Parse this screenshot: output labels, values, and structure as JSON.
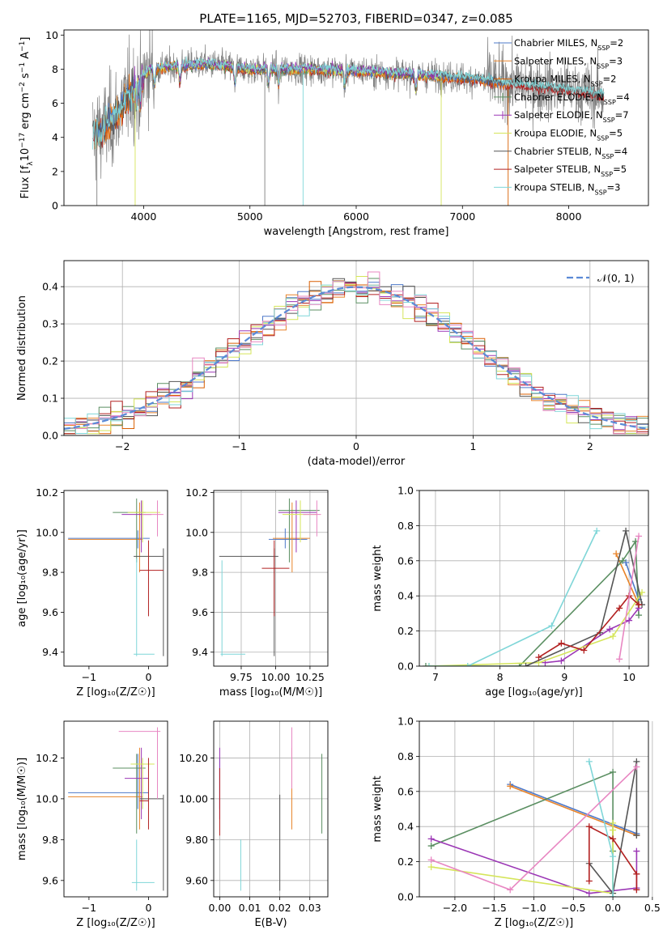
{
  "title": "PLATE=1165, MJD=52703, FIBERID=0347, z=0.085",
  "colors": {
    "Chabrier MILES": "#4e79c9",
    "Salpeter MILES": "#e8842a",
    "Kroupa MILES": "#d95f02",
    "Chabrier ELODIE": "#5b8f62",
    "Salpeter ELODIE": "#9b36b5",
    "Kroupa ELODIE": "#d5e55a",
    "Chabrier STELIB": "#555555",
    "Salpeter STELIB": "#b22020",
    "Kroupa STELIB": "#7fd6d8",
    "gauss": "#5a8ad6",
    "pink": "#e887c2",
    "grid": "#b0b0b0"
  },
  "chart_data": [
    {
      "id": "spectrum",
      "type": "line",
      "title": "PLATE=1165, MJD=52703, FIBERID=0347, z=0.085",
      "xlabel": "wavelength [Angstrom, rest frame]",
      "ylabel_parts": [
        "Flux [f",
        "λ",
        "10",
        "−17",
        " erg cm",
        "−2",
        " s",
        "−1",
        " A",
        "−1",
        "]"
      ],
      "xlim": [
        3250,
        8750
      ],
      "ylim": [
        0,
        10.3
      ],
      "xticks": [
        4000,
        5000,
        6000,
        7000,
        8000
      ],
      "yticks": [
        0,
        2,
        4,
        6,
        8,
        10
      ],
      "legend_position": "right",
      "legend": [
        {
          "base": "Chabrier MILES, N",
          "n": 2,
          "kind": "line",
          "color": "Chabrier MILES"
        },
        {
          "base": "Salpeter MILES, N",
          "n": 3,
          "kind": "line",
          "color": "Salpeter MILES"
        },
        {
          "base": "Kroupa MILES, N",
          "n": 2,
          "kind": "line",
          "color": "Kroupa MILES"
        },
        {
          "base": "Chabrier ELODIE, N",
          "n": 4,
          "kind": "plus",
          "color": "Chabrier ELODIE"
        },
        {
          "base": "Salpeter ELODIE, N",
          "n": 7,
          "kind": "plus",
          "color": "Salpeter ELODIE"
        },
        {
          "base": "Kroupa ELODIE, N",
          "n": 5,
          "kind": "line",
          "color": "Kroupa ELODIE"
        },
        {
          "base": "Chabrier STELIB, N",
          "n": 4,
          "kind": "line",
          "color": "Chabrier STELIB"
        },
        {
          "base": "Salpeter STELIB, N",
          "n": 5,
          "kind": "line",
          "color": "Salpeter STELIB"
        },
        {
          "base": "Kroupa STELIB, N",
          "n": 3,
          "kind": "line",
          "color": "Kroupa STELIB"
        }
      ],
      "legend_sub": "SSP",
      "continuum": [
        [
          3550,
          4.2
        ],
        [
          3650,
          4.6
        ],
        [
          3750,
          5.4
        ],
        [
          3850,
          6.4
        ],
        [
          3950,
          7.1
        ],
        [
          4050,
          8.0
        ],
        [
          4300,
          8.2
        ],
        [
          4600,
          8.3
        ],
        [
          5000,
          8.0
        ],
        [
          5500,
          8.0
        ],
        [
          6000,
          7.9
        ],
        [
          6500,
          7.7
        ],
        [
          7000,
          7.5
        ],
        [
          7500,
          7.1
        ],
        [
          8000,
          6.8
        ],
        [
          8300,
          6.5
        ]
      ]
    },
    {
      "id": "residuals",
      "type": "histogram",
      "xlabel": "(data-model)/error",
      "ylabel": "Normed distribution",
      "xlim": [
        -2.5,
        2.5
      ],
      "ylim": [
        0,
        0.47
      ],
      "xticks": [
        -2,
        -1,
        0,
        1,
        2
      ],
      "yticks": [
        0.0,
        0.1,
        0.2,
        0.3,
        0.4
      ],
      "legend_label": "𝒩(0, 1)",
      "legend_position": "top-right",
      "bin_width": 0.1,
      "series_colors": [
        "Chabrier MILES",
        "Salpeter MILES",
        "Kroupa MILES",
        "Chabrier ELODIE",
        "Salpeter ELODIE",
        "Kroupa ELODIE",
        "Chabrier STELIB",
        "Salpeter STELIB",
        "Kroupa STELIB",
        "pink"
      ]
    },
    {
      "id": "z-age",
      "type": "errorbar",
      "xlabel": "Z [log₁₀(Z/Z☉)]",
      "ylabel": "age  [log₁₀(age/yr)]",
      "xlim": [
        -1.42,
        0.32
      ],
      "ylim": [
        9.33,
        10.21
      ],
      "xticks": [
        -1,
        0
      ],
      "yticks": [
        9.4,
        9.6,
        9.8,
        10.0,
        10.2
      ],
      "points": [
        {
          "c": "Chabrier MILES",
          "x": -0.18,
          "xl": -1.35,
          "xh": 0.02,
          "y": 9.97,
          "yl": 9.92,
          "yh": 10.01
        },
        {
          "c": "Salpeter MILES",
          "x": -0.15,
          "xl": -1.35,
          "xh": -0.1,
          "y": 9.965,
          "yl": 9.8,
          "yh": 10.15
        },
        {
          "c": "Chabrier ELODIE",
          "x": -0.2,
          "xl": -0.6,
          "xh": -0.05,
          "y": 10.1,
          "yl": 9.85,
          "yh": 10.17
        },
        {
          "c": "Salpeter ELODIE",
          "x": -0.12,
          "xl": -0.45,
          "xh": 0.05,
          "y": 10.09,
          "yl": 9.9,
          "yh": 10.16
        },
        {
          "c": "Kroupa ELODIE",
          "x": -0.1,
          "xl": -0.35,
          "xh": 0.2,
          "y": 10.1,
          "yl": 9.95,
          "yh": 10.16
        },
        {
          "c": "Chabrier STELIB",
          "x": 0.25,
          "xl": -0.25,
          "xh": 0.25,
          "y": 9.88,
          "yl": 9.38,
          "yh": 9.92
        },
        {
          "c": "Salpeter STELIB",
          "x": 0.0,
          "xl": -0.15,
          "xh": 0.25,
          "y": 9.81,
          "yl": 9.58,
          "yh": 9.96
        },
        {
          "c": "Kroupa STELIB",
          "x": -0.2,
          "xl": -0.25,
          "xh": 0.1,
          "y": 9.39,
          "yl": 9.38,
          "yh": 9.87
        },
        {
          "c": "pink",
          "x": 0.15,
          "xl": -0.1,
          "xh": 0.25,
          "y": 10.09,
          "yl": 9.98,
          "yh": 10.16
        }
      ]
    },
    {
      "id": "mass-age",
      "type": "errorbar",
      "xlabel": "mass [log₁₀(M/M☉)]",
      "ylabel": "",
      "xlim": [
        9.55,
        10.38
      ],
      "ylim": [
        9.33,
        10.21
      ],
      "xticks": [
        9.75,
        10.0,
        10.25
      ],
      "yticks": [
        9.4,
        9.6,
        9.8,
        10.0,
        10.2
      ],
      "points": [
        {
          "c": "Chabrier MILES",
          "x": 10.07,
          "xl": 9.95,
          "xh": 10.23,
          "y": 9.965,
          "yl": 9.92,
          "yh": 10.02
        },
        {
          "c": "Salpeter MILES",
          "x": 10.12,
          "xl": 9.98,
          "xh": 10.25,
          "y": 9.97,
          "yl": 9.8,
          "yh": 10.15
        },
        {
          "c": "Chabrier ELODIE",
          "x": 10.1,
          "xl": 10.02,
          "xh": 10.32,
          "y": 10.11,
          "yl": 9.85,
          "yh": 10.17
        },
        {
          "c": "Salpeter ELODIE",
          "x": 10.15,
          "xl": 10.02,
          "xh": 10.3,
          "y": 10.1,
          "yl": 9.9,
          "yh": 10.16
        },
        {
          "c": "Kroupa ELODIE",
          "x": 10.18,
          "xl": 10.05,
          "xh": 10.3,
          "y": 10.09,
          "yl": 9.95,
          "yh": 10.16
        },
        {
          "c": "Chabrier STELIB",
          "x": 9.99,
          "xl": 9.59,
          "xh": 10.02,
          "y": 9.88,
          "yl": 9.38,
          "yh": 9.92
        },
        {
          "c": "Salpeter STELIB",
          "x": 9.99,
          "xl": 9.9,
          "xh": 10.1,
          "y": 9.82,
          "yl": 9.58,
          "yh": 9.96
        },
        {
          "c": "Kroupa STELIB",
          "x": 9.61,
          "xl": 9.6,
          "xh": 9.78,
          "y": 9.39,
          "yl": 9.38,
          "yh": 9.86
        },
        {
          "c": "pink",
          "x": 10.3,
          "xl": 10.2,
          "xh": 10.33,
          "y": 10.09,
          "yl": 9.98,
          "yh": 10.16
        }
      ]
    },
    {
      "id": "age-weight",
      "type": "line",
      "xlabel": "age  [log₁₀(age/yr)]",
      "ylabel": "mass weight",
      "xlim": [
        6.75,
        10.3
      ],
      "ylim": [
        0,
        1.0
      ],
      "xticks": [
        7,
        8,
        9,
        10
      ],
      "yticks": [
        0.0,
        0.2,
        0.4,
        0.6,
        0.8,
        1.0
      ],
      "series": [
        {
          "c": "Chabrier MILES",
          "pts": [
            [
              9.95,
              0.59
            ],
            [
              10.15,
              0.38
            ]
          ]
        },
        {
          "c": "Salpeter MILES",
          "pts": [
            [
              9.8,
              0.64
            ],
            [
              10.15,
              0.35
            ]
          ]
        },
        {
          "c": "Chabrier ELODIE",
          "pts": [
            [
              6.85,
              0.0
            ],
            [
              8.3,
              0.0
            ],
            [
              9.9,
              0.6
            ],
            [
              10.1,
              0.71
            ],
            [
              10.15,
              0.29
            ]
          ]
        },
        {
          "c": "Salpeter ELODIE",
          "pts": [
            [
              8.7,
              0.02
            ],
            [
              8.95,
              0.03
            ],
            [
              9.7,
              0.21
            ],
            [
              10.0,
              0.26
            ],
            [
              10.15,
              0.33
            ]
          ]
        },
        {
          "c": "Kroupa ELODIE",
          "pts": [
            [
              6.9,
              0.0
            ],
            [
              8.6,
              0.02
            ],
            [
              9.75,
              0.17
            ],
            [
              10.2,
              0.42
            ]
          ]
        },
        {
          "c": "Chabrier STELIB",
          "pts": [
            [
              8.4,
              0.0
            ],
            [
              9.55,
              0.19
            ],
            [
              9.95,
              0.77
            ],
            [
              10.2,
              0.35
            ]
          ]
        },
        {
          "c": "Salpeter STELIB",
          "pts": [
            [
              8.6,
              0.05
            ],
            [
              8.95,
              0.13
            ],
            [
              9.3,
              0.09
            ],
            [
              9.85,
              0.33
            ],
            [
              10.0,
              0.4
            ],
            [
              10.15,
              0.35
            ]
          ]
        },
        {
          "c": "Kroupa STELIB",
          "pts": [
            [
              6.9,
              0.0
            ],
            [
              7.5,
              0.0
            ],
            [
              8.8,
              0.23
            ],
            [
              9.5,
              0.77
            ]
          ]
        },
        {
          "c": "pink",
          "pts": [
            [
              9.85,
              0.04
            ],
            [
              10.15,
              0.74
            ]
          ]
        }
      ]
    },
    {
      "id": "z-mass",
      "type": "errorbar",
      "xlabel": "Z [log₁₀(Z/Z☉)]",
      "ylabel": "mass [log₁₀(M/M☉)]",
      "xlim": [
        -1.42,
        0.32
      ],
      "ylim": [
        9.52,
        10.38
      ],
      "xticks": [
        -1,
        0
      ],
      "yticks": [
        9.6,
        9.8,
        10.0,
        10.2
      ],
      "points": [
        {
          "c": "Chabrier MILES",
          "x": -0.18,
          "xl": -1.35,
          "xh": 0.0,
          "y": 10.03,
          "yl": 9.95,
          "yh": 10.22
        },
        {
          "c": "Salpeter MILES",
          "x": -0.15,
          "xl": -1.35,
          "xh": -0.1,
          "y": 10.01,
          "yl": 9.85,
          "yh": 10.25
        },
        {
          "c": "Chabrier ELODIE",
          "x": -0.2,
          "xl": -0.6,
          "xh": -0.05,
          "y": 10.15,
          "yl": 9.83,
          "yh": 10.22
        },
        {
          "c": "Salpeter ELODIE",
          "x": -0.12,
          "xl": -0.4,
          "xh": 0.0,
          "y": 10.1,
          "yl": 9.9,
          "yh": 10.25
        },
        {
          "c": "Kroupa ELODIE",
          "x": -0.1,
          "xl": -0.3,
          "xh": 0.1,
          "y": 10.17,
          "yl": 9.95,
          "yh": 10.2
        },
        {
          "c": "Chabrier STELIB",
          "x": 0.25,
          "xl": -0.15,
          "xh": 0.25,
          "y": 10.0,
          "yl": 9.55,
          "yh": 10.02
        },
        {
          "c": "Salpeter STELIB",
          "x": 0.0,
          "xl": -0.15,
          "xh": 0.0,
          "y": 9.99,
          "yl": 9.85,
          "yh": 10.2
        },
        {
          "c": "Kroupa STELIB",
          "x": -0.2,
          "xl": -0.28,
          "xh": 0.1,
          "y": 9.59,
          "yl": 9.55,
          "yh": 9.8
        },
        {
          "c": "pink",
          "x": 0.15,
          "xl": -0.5,
          "xh": 0.2,
          "y": 10.33,
          "yl": 10.0,
          "yh": 10.35
        }
      ]
    },
    {
      "id": "ebv-mass",
      "type": "errorbar",
      "xlabel": "E(B-V)",
      "ylabel": "",
      "xlim": [
        -0.002,
        0.036
      ],
      "ylim": [
        9.52,
        10.38
      ],
      "xticks": [
        0.0,
        0.01,
        0.02,
        0.03
      ],
      "yticks": [
        9.6,
        9.8,
        10.0,
        10.2
      ],
      "points": [
        {
          "c": "Chabrier MILES",
          "x": 0.0,
          "xl": 0.0,
          "xh": 0.0,
          "y": 10.1,
          "yl": 9.95,
          "yh": 10.2
        },
        {
          "c": "Salpeter MILES",
          "x": 0.024,
          "xl": 0.024,
          "xh": 0.024,
          "y": 10.05,
          "yl": 9.85,
          "yh": 10.25
        },
        {
          "c": "Chabrier ELODIE",
          "x": 0.034,
          "xl": 0.034,
          "xh": 0.034,
          "y": 10.05,
          "yl": 9.83,
          "yh": 10.22
        },
        {
          "c": "Salpeter ELODIE",
          "x": 0.0,
          "xl": 0.0,
          "xh": 0.0,
          "y": 10.1,
          "yl": 9.9,
          "yh": 10.25
        },
        {
          "c": "Chabrier STELIB",
          "x": 0.02,
          "xl": 0.02,
          "xh": 0.02,
          "y": 9.8,
          "yl": 9.55,
          "yh": 10.02
        },
        {
          "c": "Salpeter STELIB",
          "x": 0.0,
          "xl": 0.0,
          "xh": 0.0,
          "y": 10.0,
          "yl": 9.82,
          "yh": 10.15
        },
        {
          "c": "Kroupa STELIB",
          "x": 0.007,
          "xl": 0.007,
          "xh": 0.007,
          "y": 9.65,
          "yl": 9.55,
          "yh": 9.8
        },
        {
          "c": "pink",
          "x": 0.024,
          "xl": 0.024,
          "xh": 0.024,
          "y": 10.2,
          "yl": 10.05,
          "yh": 10.35
        }
      ]
    },
    {
      "id": "z-weight",
      "type": "line",
      "xlabel": "Z [log₁₀(Z/Z☉)]",
      "ylabel": "mass weight",
      "xlim": [
        -2.45,
        0.45
      ],
      "ylim": [
        0,
        1.0
      ],
      "xticks": [
        -2.0,
        -1.5,
        -1.0,
        -0.5,
        0.0,
        0.5
      ],
      "yticks": [
        0.0,
        0.2,
        0.4,
        0.6,
        0.8,
        1.0
      ],
      "series": [
        {
          "c": "Chabrier MILES",
          "pts": [
            [
              -1.3,
              0.64
            ],
            [
              0.3,
              0.36
            ]
          ]
        },
        {
          "c": "Salpeter MILES",
          "pts": [
            [
              -1.3,
              0.63
            ],
            [
              0.3,
              0.35
            ]
          ]
        },
        {
          "c": "Chabrier ELODIE",
          "pts": [
            [
              -2.3,
              0.29
            ],
            [
              0.0,
              0.71
            ],
            [
              0.0,
              0.26
            ],
            [
              0.0,
              0.0
            ]
          ]
        },
        {
          "c": "Salpeter ELODIE",
          "pts": [
            [
              -2.3,
              0.33
            ],
            [
              -0.3,
              0.02
            ],
            [
              0.3,
              0.05
            ],
            [
              0.3,
              0.26
            ]
          ]
        },
        {
          "c": "Kroupa ELODIE",
          "pts": [
            [
              -2.3,
              0.17
            ],
            [
              0.0,
              0.02
            ],
            [
              0.0,
              0.38
            ],
            [
              0.0,
              0.42
            ]
          ]
        },
        {
          "c": "Chabrier STELIB",
          "pts": [
            [
              -0.3,
              0.19
            ],
            [
              0.0,
              0.02
            ],
            [
              0.3,
              0.77
            ],
            [
              0.3,
              0.35
            ]
          ]
        },
        {
          "c": "Salpeter STELIB",
          "pts": [
            [
              -0.3,
              0.09
            ],
            [
              -0.3,
              0.4
            ],
            [
              0.0,
              0.33
            ],
            [
              0.3,
              0.13
            ],
            [
              0.3,
              0.04
            ]
          ]
        },
        {
          "c": "Kroupa STELIB",
          "pts": [
            [
              -0.3,
              0.77
            ],
            [
              0.0,
              0.23
            ],
            [
              0.0,
              0.0
            ]
          ]
        },
        {
          "c": "pink",
          "pts": [
            [
              -2.3,
              0.21
            ],
            [
              -1.3,
              0.04
            ],
            [
              0.3,
              0.74
            ]
          ]
        }
      ]
    }
  ]
}
